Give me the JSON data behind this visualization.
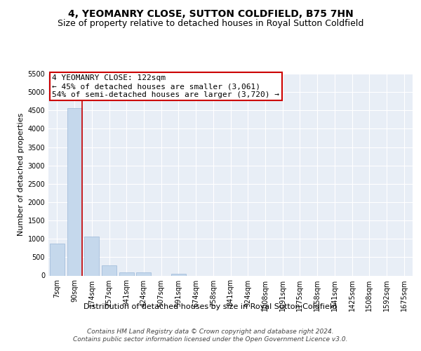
{
  "title": "4, YEOMANRY CLOSE, SUTTON COLDFIELD, B75 7HN",
  "subtitle": "Size of property relative to detached houses in Royal Sutton Coldfield",
  "xlabel": "Distribution of detached houses by size in Royal Sutton Coldfield",
  "ylabel": "Number of detached properties",
  "categories": [
    "7sqm",
    "90sqm",
    "174sqm",
    "257sqm",
    "341sqm",
    "424sqm",
    "507sqm",
    "591sqm",
    "674sqm",
    "758sqm",
    "841sqm",
    "924sqm",
    "1008sqm",
    "1091sqm",
    "1175sqm",
    "1258sqm",
    "1341sqm",
    "1425sqm",
    "1508sqm",
    "1592sqm",
    "1675sqm"
  ],
  "values": [
    880,
    4560,
    1060,
    275,
    90,
    80,
    0,
    55,
    0,
    0,
    0,
    0,
    0,
    0,
    0,
    0,
    0,
    0,
    0,
    0,
    0
  ],
  "bar_color": "#c5d8ec",
  "bar_edge_color": "#9ab8d8",
  "vline_color": "#cc0000",
  "vline_bar_index": 1,
  "annotation_line1": "4 YEOMANRY CLOSE: 122sqm",
  "annotation_line2": "← 45% of detached houses are smaller (3,061)",
  "annotation_line3": "54% of semi-detached houses are larger (3,720) →",
  "annotation_box_edge": "#cc0000",
  "ylim_max": 5500,
  "ytick_step": 500,
  "bg_color": "#e8eef6",
  "grid_color": "#ffffff",
  "footer_line1": "Contains HM Land Registry data © Crown copyright and database right 2024.",
  "footer_line2": "Contains public sector information licensed under the Open Government Licence v3.0.",
  "title_fontsize": 10,
  "subtitle_fontsize": 9,
  "axis_label_fontsize": 8,
  "tick_fontsize": 7,
  "annot_fontsize": 8,
  "footer_fontsize": 6.5
}
